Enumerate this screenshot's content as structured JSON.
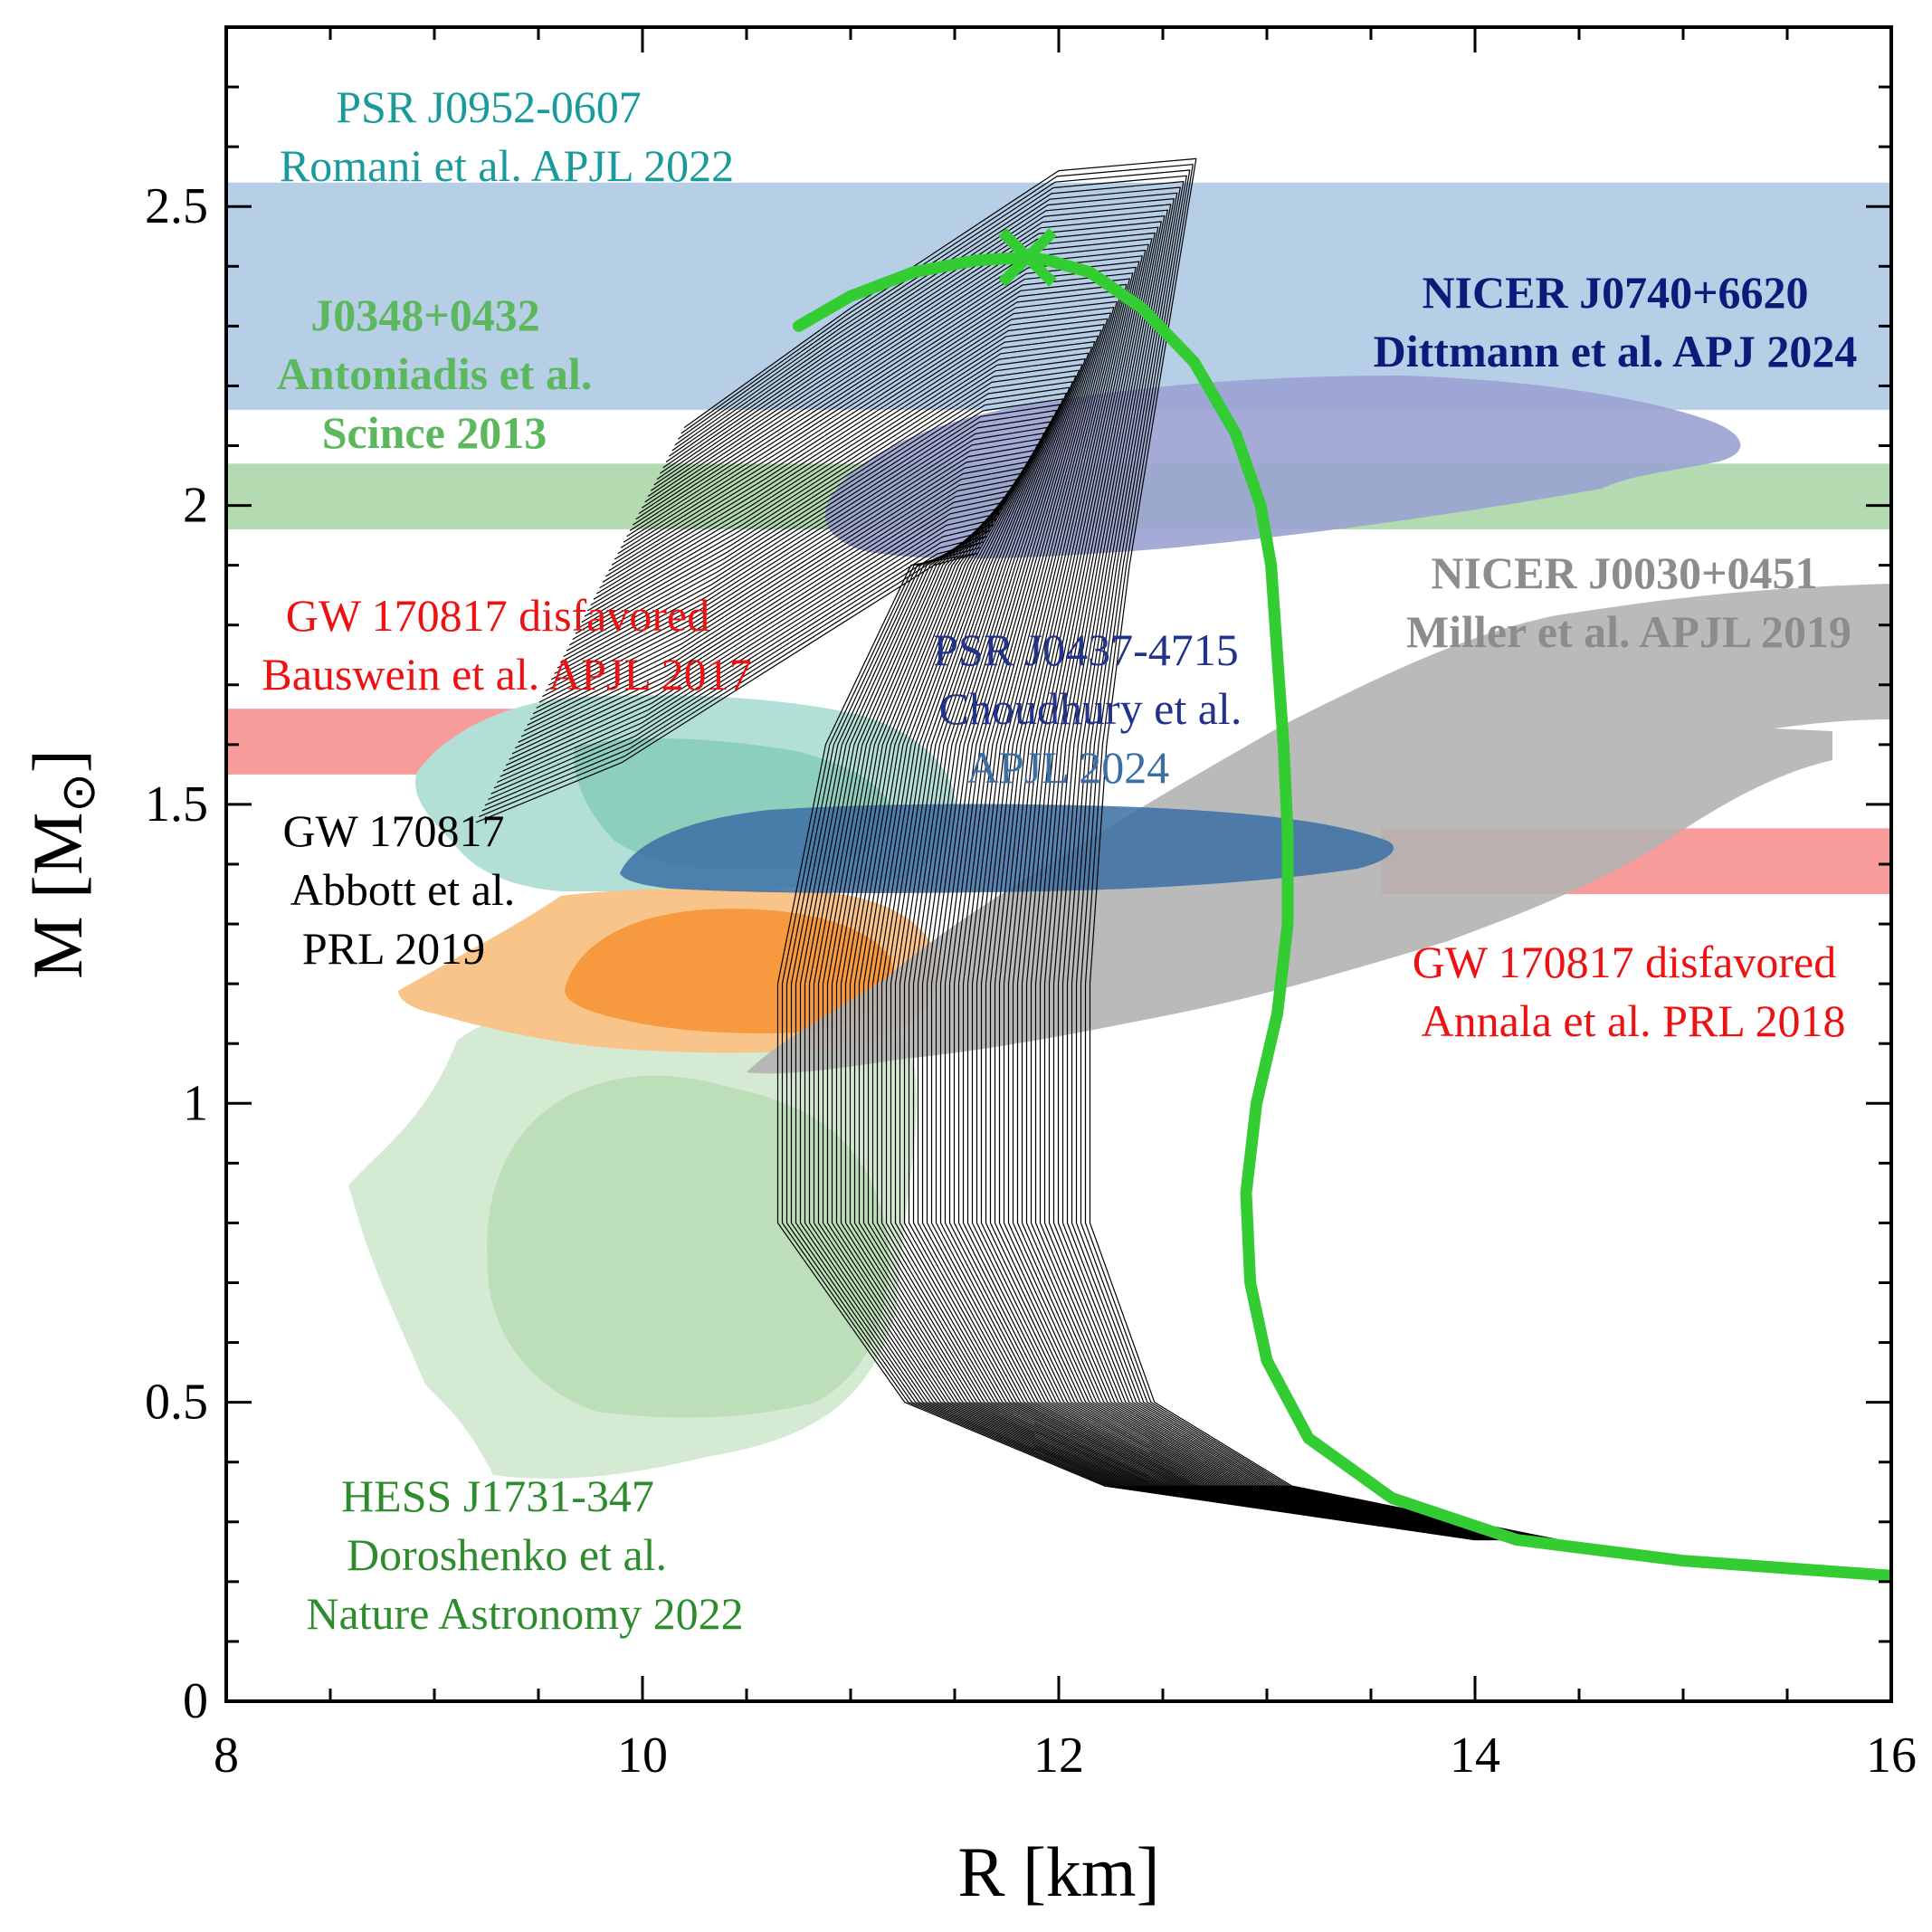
{
  "chart_data": {
    "type": "line",
    "title": "",
    "xlabel": "R [km]",
    "ylabel_main": "M [M",
    "ylabel_sub": "⊙",
    "ylabel_end": "]",
    "xlim": [
      8,
      16
    ],
    "ylim": [
      0,
      2.8
    ],
    "xticks": [
      8,
      10,
      12,
      14,
      16
    ],
    "xtick_labels": [
      "8",
      "10",
      "12",
      "14",
      "16"
    ],
    "yticks": [
      0,
      0.5,
      1,
      1.5,
      2,
      2.5
    ],
    "ytick_labels": [
      "0",
      "0.5",
      "1",
      "1.5",
      "2",
      "2.5"
    ],
    "mass_bands": [
      {
        "name": "PSR J0952-0607",
        "x_range": [
          8,
          16
        ],
        "y_range": [
          2.16,
          2.54
        ],
        "color": "#a9c6e2"
      },
      {
        "name": "J0348+0432",
        "x_range": [
          8,
          16
        ],
        "y_range": [
          1.96,
          2.07
        ],
        "color": "#a7d3a5"
      },
      {
        "name": "GW 170817 disfavored (Bauswein)",
        "x_range": [
          8,
          10.8
        ],
        "y_range": [
          1.55,
          1.66
        ],
        "color": "#f78a8a"
      },
      {
        "name": "GW 170817 disfavored (Annala)",
        "x_range": [
          13.55,
          16
        ],
        "y_range": [
          1.35,
          1.46
        ],
        "color": "#f78a8a"
      }
    ],
    "series": [
      {
        "name": "Representative M-R curve",
        "color": "#33cc33",
        "x": [
          16.0,
          15.0,
          14.2,
          13.6,
          13.2,
          13.0,
          12.92,
          12.9,
          12.95,
          13.05,
          13.1,
          13.1,
          13.08,
          13.05,
          13.02,
          12.97,
          12.85,
          12.65,
          12.4,
          12.15,
          11.95,
          11.85,
          11.6,
          11.3,
          11.0,
          10.75
        ],
        "y": [
          0.21,
          0.235,
          0.27,
          0.34,
          0.44,
          0.57,
          0.7,
          0.85,
          1.0,
          1.15,
          1.3,
          1.45,
          1.6,
          1.75,
          1.9,
          2.0,
          2.12,
          2.24,
          2.33,
          2.39,
          2.41,
          2.415,
          2.41,
          2.39,
          2.35,
          2.3
        ]
      }
    ],
    "marker": {
      "name": "Maximum mass",
      "x": 11.85,
      "y": 2.415,
      "symbol": "×",
      "color": "#33cc33"
    },
    "annotations": {
      "psr0952_line1": "PSR J0952-0607",
      "psr0952_line2": "Romani et al. APJL 2022",
      "j0348_line1": "J0348+0432",
      "j0348_line2": "Antoniadis et al.",
      "j0348_line3": "Scince 2013",
      "nicer0740_line1": "NICER J0740+6620",
      "nicer0740_line2": "Dittmann et al. APJ 2024",
      "nicer0030_line1": "NICER J0030+0451",
      "nicer0030_line2": "Miller et al. APJL 2019",
      "bauswein_line1": "GW 170817 disfavored",
      "bauswein_line2": "Bauswein et al. APJL 2017",
      "psr0437_line1": "PSR J0437-4715",
      "psr0437_line2": "Choudhury et al.",
      "psr0437_line3": "APJL 2024",
      "gw_line1": "GW 170817",
      "gw_line2": "Abbott et al.",
      "gw_line3": "PRL 2019",
      "annala_line1": "GW 170817 disfavored",
      "annala_line2": "Annala et al. PRL 2018",
      "hess_line1": "HESS  J1731-347",
      "hess_line2": "Doroshenko et al.",
      "hess_line3": "Nature Astronomy 2022"
    },
    "colors": {
      "teal_text": "#1a9a9a",
      "green_text": "#5cb85c",
      "navy_text": "#0d1a7a",
      "gray_text": "#8c8c8c",
      "red_text": "#ee1111",
      "blue_text": "#22338c",
      "black_text": "#000000",
      "dark_green_text": "#2e8b2e"
    }
  }
}
